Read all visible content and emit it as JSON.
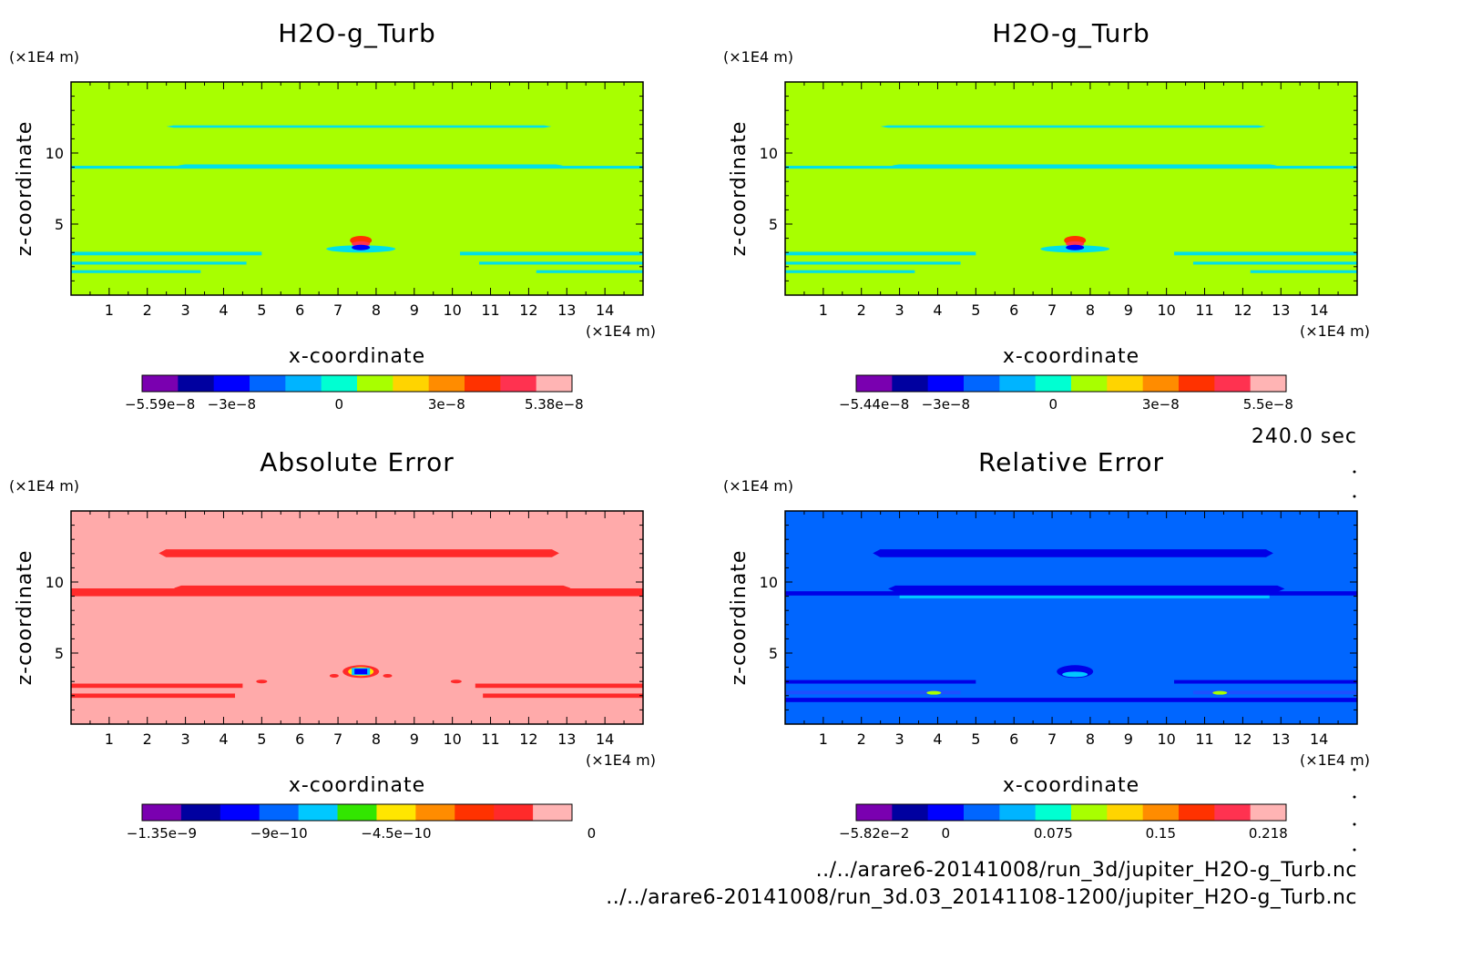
{
  "chart_data": [
    {
      "type": "heatmap",
      "title": "H2O-g_Turb",
      "xlabel": "x-coordinate",
      "ylabel": "z-coordinate",
      "x_unit": "(×1E4 m)",
      "y_unit": "(×1E4 m)",
      "xlim": [
        0,
        15
      ],
      "ylim": [
        0,
        15
      ],
      "x_ticks": [
        "1",
        "2",
        "3",
        "4",
        "5",
        "6",
        "7",
        "8",
        "9",
        "10",
        "11",
        "12",
        "13",
        "14"
      ],
      "y_ticks": [
        "5",
        "10"
      ],
      "colorbar": {
        "min": -5.59e-08,
        "max": 5.38e-08,
        "labels": [
          "−5.59e−8",
          "−3e−8",
          "0",
          "3e−8",
          "5.38e−8"
        ],
        "colors": [
          "#7a00b0",
          "#0000a0",
          "#0000ff",
          "#0066ff",
          "#00b4ff",
          "#00ffd2",
          "#a8ff00",
          "#ffd400",
          "#ff8c00",
          "#ff3200",
          "#ff3250",
          "#ffb4b4"
        ]
      },
      "background_color": "#a8ff00",
      "feature_color": "#00e0e8",
      "peak_value": "5.38e-8",
      "peak_location": [
        7.6,
        3.7
      ]
    },
    {
      "type": "heatmap",
      "title": "H2O-g_Turb",
      "xlabel": "x-coordinate",
      "ylabel": "z-coordinate",
      "x_unit": "(×1E4 m)",
      "y_unit": "(×1E4 m)",
      "xlim": [
        0,
        15
      ],
      "ylim": [
        0,
        15
      ],
      "x_ticks": [
        "1",
        "2",
        "3",
        "4",
        "5",
        "6",
        "7",
        "8",
        "9",
        "10",
        "11",
        "12",
        "13",
        "14"
      ],
      "y_ticks": [
        "5",
        "10"
      ],
      "colorbar": {
        "min": -5.44e-08,
        "max": 5.5e-08,
        "labels": [
          "−5.44e−8",
          "−3e−8",
          "0",
          "3e−8",
          "5.5e−8"
        ],
        "colors": [
          "#7a00b0",
          "#0000a0",
          "#0000ff",
          "#0066ff",
          "#00b4ff",
          "#00ffd2",
          "#a8ff00",
          "#ffd400",
          "#ff8c00",
          "#ff3200",
          "#ff3250",
          "#ffb4b4"
        ]
      },
      "background_color": "#a8ff00",
      "feature_color": "#00e0e8",
      "peak_value": "5.5e-8",
      "peak_location": [
        7.6,
        3.7
      ]
    },
    {
      "type": "heatmap",
      "title": "Absolute Error",
      "xlabel": "x-coordinate",
      "ylabel": "z-coordinate",
      "x_unit": "(×1E4 m)",
      "y_unit": "(×1E4 m)",
      "xlim": [
        0,
        15
      ],
      "ylim": [
        0,
        15
      ],
      "x_ticks": [
        "1",
        "2",
        "3",
        "4",
        "5",
        "6",
        "7",
        "8",
        "9",
        "10",
        "11",
        "12",
        "13",
        "14"
      ],
      "y_ticks": [
        "5",
        "10"
      ],
      "colorbar": {
        "min": -1.35e-09,
        "max": 0,
        "labels": [
          "−1.35e−9",
          "−9e−10",
          "−4.5e−10",
          "0"
        ],
        "colors": [
          "#7a00b0",
          "#0000a0",
          "#0000ff",
          "#0066ff",
          "#00c8ff",
          "#32e600",
          "#ffe600",
          "#ff8c00",
          "#ff3200",
          "#ff2a2a",
          "#ffb4b4"
        ]
      },
      "background_color": "#ffaaaa",
      "feature_color": "#ff2a2a",
      "min_value": "-1.35e-9",
      "min_location": [
        7.6,
        3.7
      ]
    },
    {
      "type": "heatmap",
      "title": "Relative Error",
      "xlabel": "x-coordinate",
      "ylabel": "z-coordinate",
      "x_unit": "(×1E4 m)",
      "y_unit": "(×1E4 m)",
      "xlim": [
        0,
        15
      ],
      "ylim": [
        0,
        15
      ],
      "x_ticks": [
        "1",
        "2",
        "3",
        "4",
        "5",
        "6",
        "7",
        "8",
        "9",
        "10",
        "11",
        "12",
        "13",
        "14"
      ],
      "y_ticks": [
        "5",
        "10"
      ],
      "colorbar": {
        "min": -0.0582,
        "max": 0.218,
        "labels": [
          "−5.82e−2",
          "0",
          "0.075",
          "0.15",
          "0.218"
        ],
        "colors": [
          "#7a00b0",
          "#0000a0",
          "#0000ff",
          "#0066ff",
          "#00b4ff",
          "#00ffd2",
          "#a8ff00",
          "#ffd400",
          "#ff8c00",
          "#ff3200",
          "#ff3250",
          "#ffb4b4"
        ]
      },
      "background_color": "#0066ff",
      "feature_color": "#0000e6",
      "max_location": [
        7.6,
        3.7
      ]
    }
  ],
  "time_label": "240.0 sec",
  "file_paths": [
    "../../arare6-20141008/run_3d/jupiter_H2O-g_Turb.nc",
    "../../arare6-20141008/run_3d.03_20141108-1200/jupiter_H2O-g_Turb.nc"
  ]
}
